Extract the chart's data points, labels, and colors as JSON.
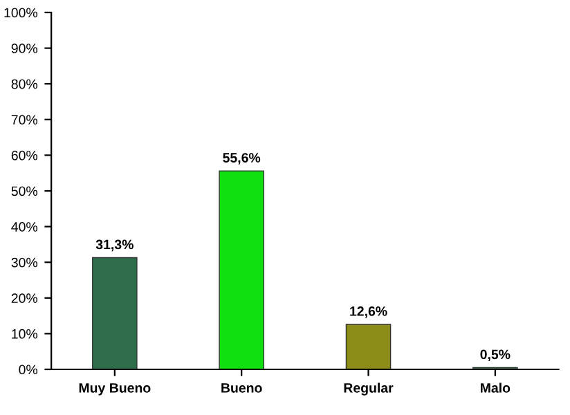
{
  "chart_data": {
    "type": "bar",
    "categories": [
      "Muy Bueno",
      "Bueno",
      "Regular",
      "Malo"
    ],
    "values": [
      31.3,
      55.6,
      12.6,
      0.5
    ],
    "colors": [
      "#2f6e4c",
      "#10e010",
      "#8c8c18",
      "#3d6b4a"
    ],
    "value_labels": [
      "31,3%",
      "55,6%",
      "12,6%",
      "0,5%"
    ],
    "ylim": [
      0,
      100
    ],
    "yticks": [
      {
        "value": 0,
        "label": "0%"
      },
      {
        "value": 10,
        "label": "10%"
      },
      {
        "value": 20,
        "label": "20%"
      },
      {
        "value": 30,
        "label": "30%"
      },
      {
        "value": 40,
        "label": "40%"
      },
      {
        "value": 50,
        "label": "50%"
      },
      {
        "value": 60,
        "label": "60%"
      },
      {
        "value": 70,
        "label": "70%"
      },
      {
        "value": 80,
        "label": "80%"
      },
      {
        "value": 90,
        "label": "90%"
      },
      {
        "value": 100,
        "label": "100%"
      }
    ],
    "grid": false,
    "legend": false
  }
}
